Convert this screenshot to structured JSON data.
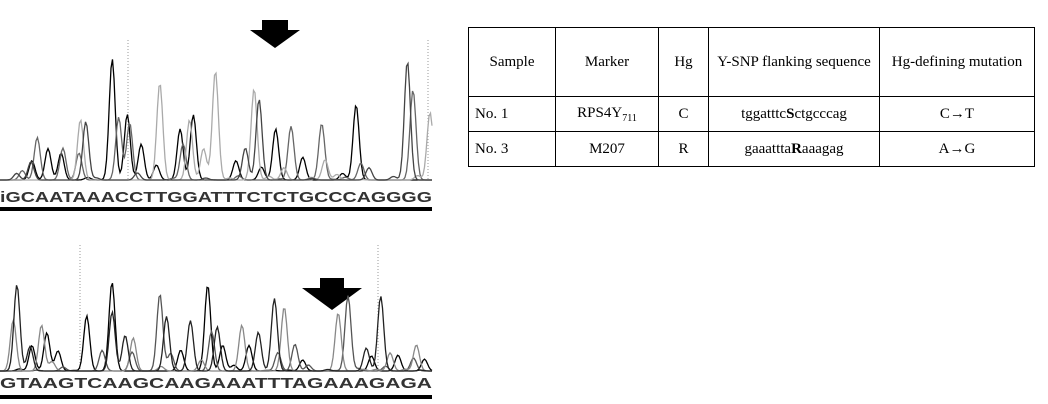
{
  "chromatograms": [
    {
      "sequence": "iGCAATAAACCTTGGATTTCTCTGCCCAGGGG"
    },
    {
      "sequence": "GTAAGTCAAGCAAGAAATTTAGAAAGAGA"
    }
  ],
  "table": {
    "header": [
      "Sample",
      "Marker",
      "Hg",
      "Y-SNP flanking sequence",
      "Hg-defining mutation"
    ],
    "rows": [
      {
        "sample": "No. 1",
        "marker": {
          "text": "RPS4Y",
          "subscript": "711"
        },
        "hg": "C",
        "sequence": {
          "before": "tggatttc",
          "snp": "S",
          "after": "ctgcccag"
        },
        "mutation": "C→T"
      },
      {
        "sample": "No. 3",
        "marker": {
          "text": "M207"
        },
        "hg": "R",
        "sequence": {
          "before": "gaaattta",
          "snp": "R",
          "after": "aaagag"
        },
        "mutation": "A→G"
      }
    ]
  }
}
